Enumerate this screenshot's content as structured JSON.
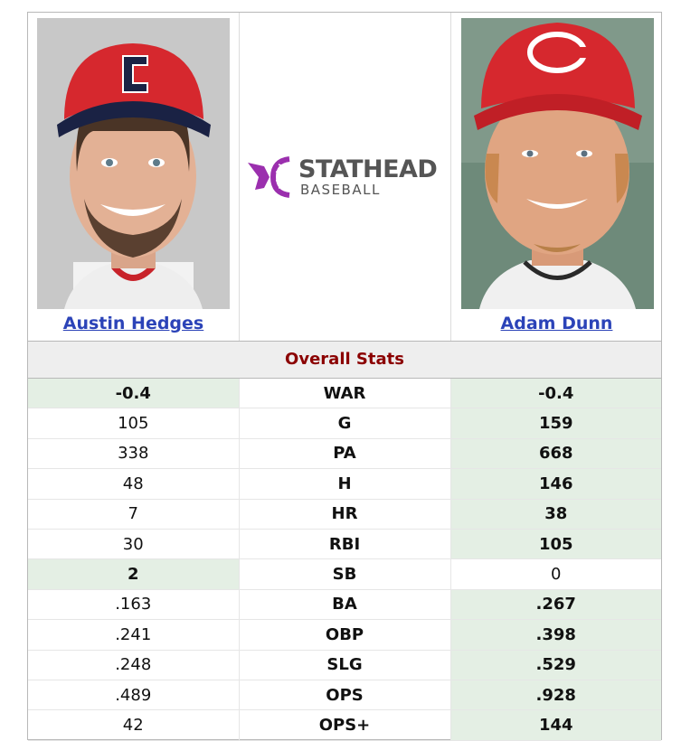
{
  "players": {
    "left": {
      "name": "Austin Hedges"
    },
    "right": {
      "name": "Adam Dunn"
    }
  },
  "logo": {
    "line1": "STATHEAD",
    "line2": "BASEBALL"
  },
  "section_title": "Overall Stats",
  "stats": [
    {
      "label": "WAR",
      "left": "-0.4",
      "right": "-0.4",
      "left_win": true,
      "right_win": true
    },
    {
      "label": "G",
      "left": "105",
      "right": "159",
      "left_win": false,
      "right_win": true
    },
    {
      "label": "PA",
      "left": "338",
      "right": "668",
      "left_win": false,
      "right_win": true
    },
    {
      "label": "H",
      "left": "48",
      "right": "146",
      "left_win": false,
      "right_win": true
    },
    {
      "label": "HR",
      "left": "7",
      "right": "38",
      "left_win": false,
      "right_win": true
    },
    {
      "label": "RBI",
      "left": "30",
      "right": "105",
      "left_win": false,
      "right_win": true
    },
    {
      "label": "SB",
      "left": "2",
      "right": "0",
      "left_win": true,
      "right_win": false
    },
    {
      "label": "BA",
      "left": ".163",
      "right": ".267",
      "left_win": false,
      "right_win": true
    },
    {
      "label": "OBP",
      "left": ".241",
      "right": ".398",
      "left_win": false,
      "right_win": true
    },
    {
      "label": "SLG",
      "left": ".248",
      "right": ".529",
      "left_win": false,
      "right_win": true
    },
    {
      "label": "OPS",
      "left": ".489",
      "right": ".928",
      "left_win": false,
      "right_win": true
    },
    {
      "label": "OPS+",
      "left": "42",
      "right": "144",
      "left_win": false,
      "right_win": true
    }
  ],
  "colors": {
    "cap_red": "#d6282e",
    "win_bg": "#e4efe4",
    "link": "#2b43b8",
    "logo_purple": "#9b2fae"
  }
}
